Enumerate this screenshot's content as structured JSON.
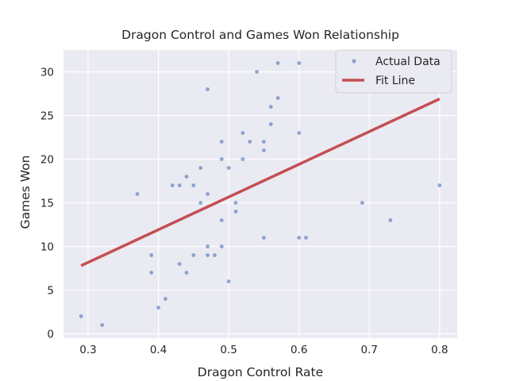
{
  "chart_data": {
    "type": "scatter",
    "title": "Dragon Control and Games Won Relationship",
    "xlabel": "Dragon Control Rate",
    "ylabel": "Games Won",
    "xlim": [
      0.265,
      0.825
    ],
    "ylim": [
      -0.5,
      32.5
    ],
    "xticks": [
      0.3,
      0.4,
      0.5,
      0.6,
      0.7,
      0.8
    ],
    "xtick_labels": [
      "0.3",
      "0.4",
      "0.5",
      "0.6",
      "0.7",
      "0.8"
    ],
    "yticks": [
      0,
      5,
      10,
      15,
      20,
      25,
      30
    ],
    "ytick_labels": [
      "0",
      "5",
      "10",
      "15",
      "20",
      "25",
      "30"
    ],
    "grid": true,
    "legend_position": "top-right",
    "colors": {
      "background": "#eaeaf2",
      "points": "#4c72b0",
      "fit_line": "#c44e52",
      "grid": "#ffffff"
    },
    "series": [
      {
        "name": "Actual Data",
        "kind": "scatter",
        "points": [
          [
            0.29,
            2
          ],
          [
            0.32,
            1
          ],
          [
            0.37,
            16
          ],
          [
            0.39,
            9
          ],
          [
            0.39,
            7
          ],
          [
            0.4,
            3
          ],
          [
            0.41,
            4
          ],
          [
            0.42,
            17
          ],
          [
            0.43,
            17
          ],
          [
            0.43,
            8
          ],
          [
            0.44,
            18
          ],
          [
            0.44,
            7
          ],
          [
            0.45,
            17
          ],
          [
            0.45,
            9
          ],
          [
            0.46,
            19
          ],
          [
            0.46,
            15
          ],
          [
            0.47,
            28
          ],
          [
            0.47,
            16
          ],
          [
            0.47,
            10
          ],
          [
            0.47,
            9
          ],
          [
            0.48,
            9
          ],
          [
            0.49,
            22
          ],
          [
            0.49,
            20
          ],
          [
            0.49,
            13
          ],
          [
            0.49,
            10
          ],
          [
            0.5,
            19
          ],
          [
            0.5,
            6
          ],
          [
            0.51,
            15
          ],
          [
            0.51,
            14
          ],
          [
            0.52,
            23
          ],
          [
            0.52,
            20
          ],
          [
            0.53,
            22
          ],
          [
            0.54,
            30
          ],
          [
            0.55,
            22
          ],
          [
            0.55,
            21
          ],
          [
            0.55,
            11
          ],
          [
            0.56,
            26
          ],
          [
            0.56,
            24
          ],
          [
            0.57,
            31
          ],
          [
            0.57,
            27
          ],
          [
            0.6,
            31
          ],
          [
            0.6,
            23
          ],
          [
            0.6,
            11
          ],
          [
            0.61,
            11
          ],
          [
            0.69,
            15
          ],
          [
            0.73,
            13
          ],
          [
            0.8,
            17
          ]
        ]
      },
      {
        "name": "Fit Line",
        "kind": "line",
        "points": [
          [
            0.29,
            7.8
          ],
          [
            0.8,
            26.9
          ]
        ]
      }
    ]
  }
}
